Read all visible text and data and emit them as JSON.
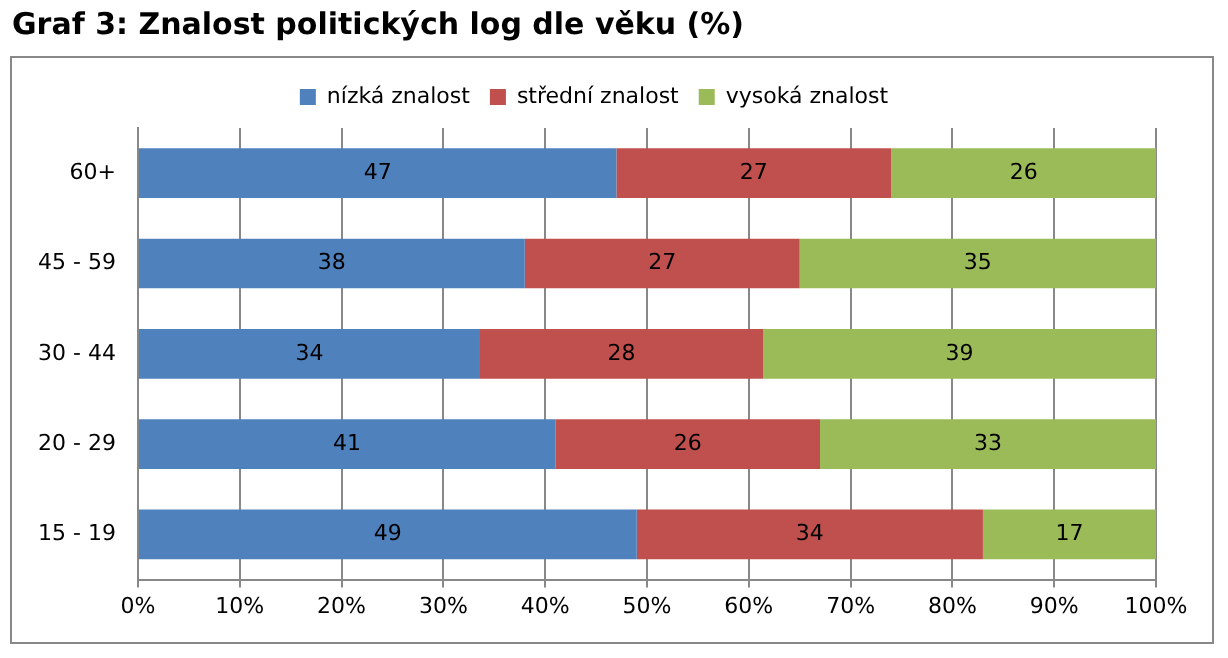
{
  "chart_data": {
    "type": "bar",
    "orientation": "horizontal",
    "stacked": true,
    "title": "Graf 3: Znalost politických log dle věku (%)",
    "categories": [
      "60+",
      "45 - 59",
      "30 - 44",
      "20 - 29",
      "15 - 19"
    ],
    "series": [
      {
        "name": "nízká znalost",
        "color": "#4f81bd",
        "values": [
          47,
          38,
          33.6,
          41,
          49
        ],
        "value_labels": [
          "47",
          "38",
          "34",
          "41",
          "49"
        ]
      },
      {
        "name": "střední znalost",
        "color": "#c0504d",
        "values": [
          27,
          27,
          27.8,
          26,
          34
        ],
        "value_labels": [
          "27",
          "27",
          "28",
          "26",
          "34"
        ]
      },
      {
        "name": "vysoká znalost",
        "color": "#9bbb59",
        "values": [
          26,
          35,
          38.6,
          33,
          17
        ],
        "value_labels": [
          "26",
          "35",
          "39",
          "33",
          "17"
        ]
      }
    ],
    "xlim": [
      0,
      100
    ],
    "xticks": [
      {
        "value": 0,
        "label": "0%"
      },
      {
        "value": 10,
        "label": "10%"
      },
      {
        "value": 20,
        "label": "20%"
      },
      {
        "value": 30,
        "label": "30%"
      },
      {
        "value": 40,
        "label": "40%"
      },
      {
        "value": 50,
        "label": "50%"
      },
      {
        "value": 60,
        "label": "60%"
      },
      {
        "value": 70,
        "label": "70%"
      },
      {
        "value": 80,
        "label": "80%"
      },
      {
        "value": 90,
        "label": "90%"
      },
      {
        "value": 100,
        "label": "100%"
      }
    ],
    "grid": "x",
    "legend": "top"
  }
}
